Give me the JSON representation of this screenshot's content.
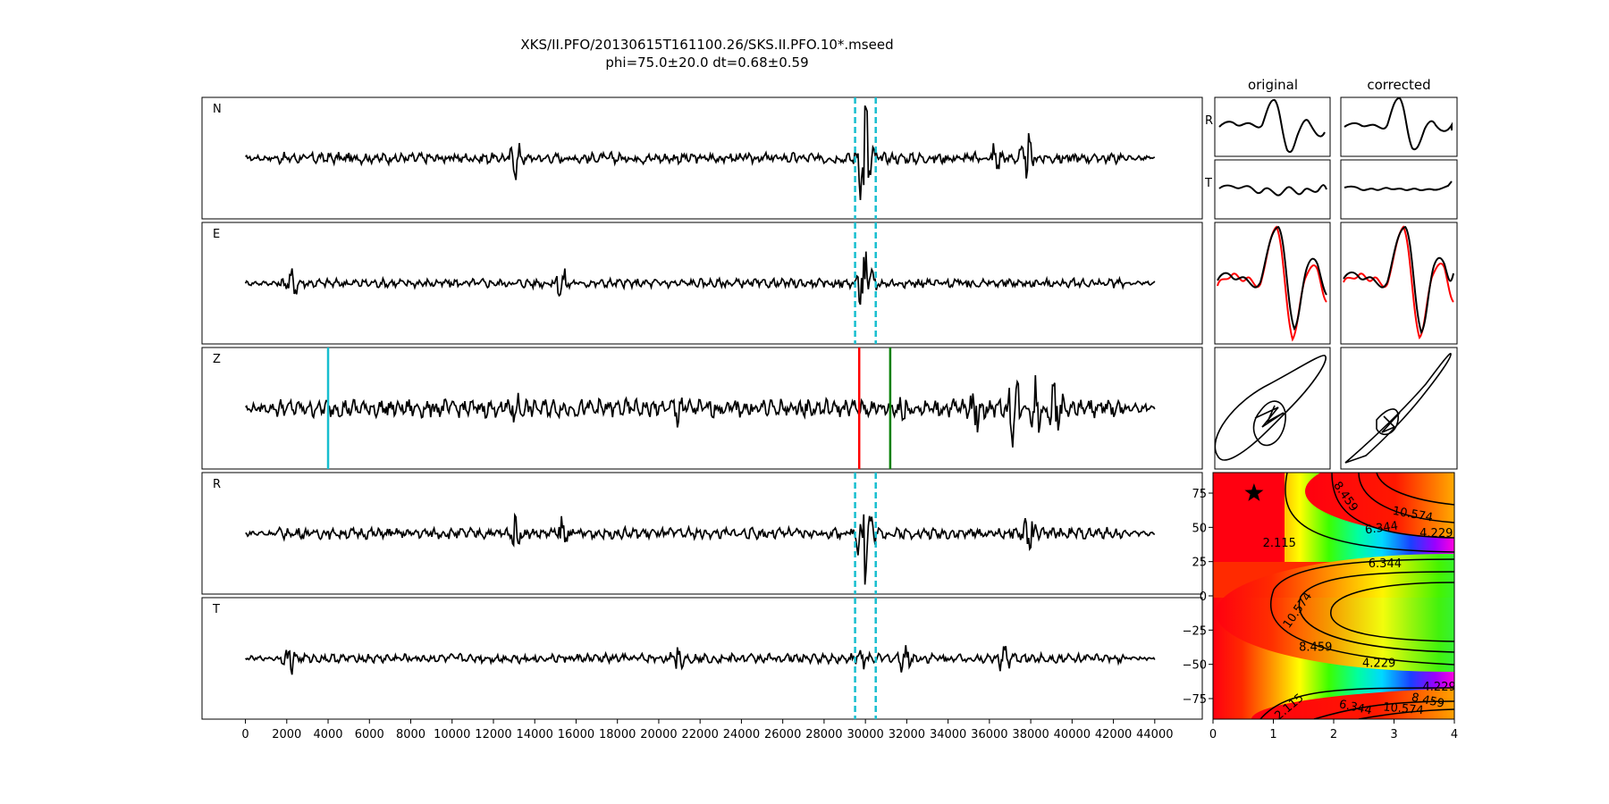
{
  "title": "XKS/II.PFO/20130615T161100.26/SKS.II.PFO.10*.mseed",
  "subtitle": "phi=75.0±20.0 dt=0.68±0.59",
  "chart_data": [
    {
      "type": "line",
      "id": "seismograms",
      "panels": [
        "N",
        "E",
        "Z",
        "R",
        "T"
      ],
      "x_ticks": [
        0,
        2000,
        4000,
        6000,
        8000,
        10000,
        12000,
        14000,
        16000,
        18000,
        20000,
        22000,
        24000,
        26000,
        28000,
        30000,
        32000,
        34000,
        36000,
        38000,
        40000,
        42000,
        44000
      ],
      "xlim": [
        -2100,
        46300
      ],
      "trace_range": [
        0,
        44000
      ],
      "window_markers": {
        "color": "#17becf",
        "style": "dashed",
        "panels": [
          "N",
          "E",
          "R",
          "T"
        ],
        "x": [
          29500,
          30500
        ]
      },
      "phase_markers": [
        {
          "panel": "Z",
          "x": 4000,
          "color": "#17becf"
        },
        {
          "panel": "Z",
          "x": 29700,
          "color": "#ff0000"
        },
        {
          "panel": "Z",
          "x": 31200,
          "color": "#008000"
        }
      ]
    },
    {
      "type": "line",
      "id": "particle_panels",
      "column_titles": [
        "original",
        "corrected"
      ],
      "row_labels": [
        "R",
        "T"
      ],
      "overlay_colors": [
        "#000000",
        "#ff0000"
      ]
    },
    {
      "type": "heatmap",
      "id": "error_surface",
      "x_ticks": [
        0,
        1,
        2,
        3,
        4
      ],
      "y_ticks": [
        75,
        50,
        25,
        0,
        -25,
        -50,
        -75
      ],
      "xlim": [
        0,
        4
      ],
      "ylim": [
        -90,
        90
      ],
      "colormap": "gist_rainbow",
      "best_fit": {
        "dt": 0.68,
        "phi": 75.0
      },
      "contour_labels": [
        {
          "text": "8.459",
          "x": 2.15,
          "y": 71,
          "rot": 55
        },
        {
          "text": "10.574",
          "x": 3.3,
          "y": 57,
          "rot": 10
        },
        {
          "text": "6.344",
          "x": 2.8,
          "y": 47,
          "rot": -8
        },
        {
          "text": "4.229",
          "x": 3.7,
          "y": 43,
          "rot": 0
        },
        {
          "text": "2.115",
          "x": 1.1,
          "y": 36,
          "rot": 0
        },
        {
          "text": "6.344",
          "x": 2.85,
          "y": 21,
          "rot": 0
        },
        {
          "text": "10.574",
          "x": 1.45,
          "y": -12,
          "rot": -55
        },
        {
          "text": "8.459",
          "x": 1.7,
          "y": -40,
          "rot": 0
        },
        {
          "text": "4.229",
          "x": 2.75,
          "y": -52,
          "rot": 0
        },
        {
          "text": "4.229",
          "x": 3.75,
          "y": -69,
          "rot": 0
        },
        {
          "text": "2.115",
          "x": 1.3,
          "y": -83,
          "rot": -40
        },
        {
          "text": "6.344",
          "x": 2.35,
          "y": -84,
          "rot": 12
        },
        {
          "text": "8.459",
          "x": 3.55,
          "y": -79,
          "rot": 12
        },
        {
          "text": "10.574",
          "x": 3.15,
          "y": -85,
          "rot": 5
        }
      ]
    }
  ]
}
